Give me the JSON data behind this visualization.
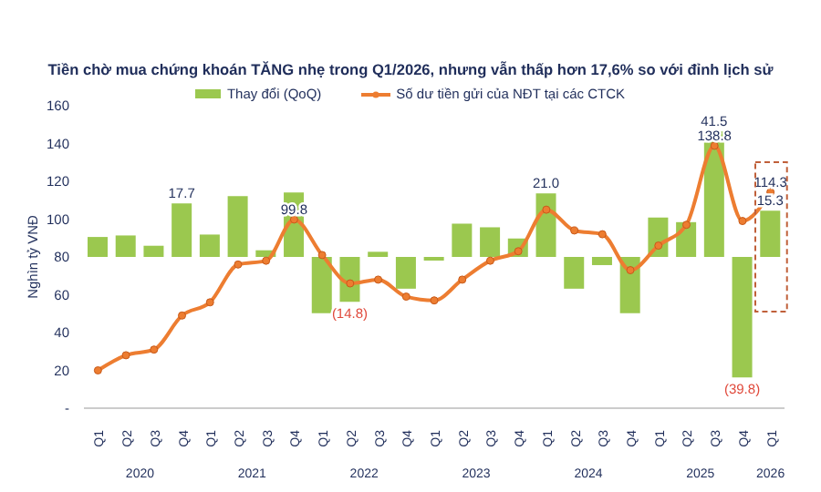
{
  "chart_data": {
    "type": "bar",
    "title": "Tiền chờ mua chứng khoán TĂNG nhẹ trong Q1/2026, nhưng vẫn thấp hơn 17,6% so với đỉnh lịch sử",
    "ylabel": "Nghìn tỷ VNĐ",
    "categories": [
      "Q1",
      "Q2",
      "Q3",
      "Q4",
      "Q1",
      "Q2",
      "Q3",
      "Q4",
      "Q1",
      "Q2",
      "Q3",
      "Q4",
      "Q1",
      "Q2",
      "Q3",
      "Q4",
      "Q1",
      "Q2",
      "Q3",
      "Q4",
      "Q1",
      "Q2",
      "Q3",
      "Q4",
      "Q1"
    ],
    "annotations": [
      "2020",
      "2021",
      "2022",
      "2023",
      "2024",
      "2025",
      "2026"
    ],
    "series": [
      {
        "name": "Thay đổi (QoQ)",
        "axis": "y2",
        "color": "#9bc84f",
        "values": [
          6.6,
          7.1,
          3.7,
          17.7,
          7.4,
          20.1,
          2.2,
          21.3,
          -18.6,
          -14.8,
          1.7,
          -10.5,
          -1.2,
          11.0,
          9.8,
          6.1,
          21.0,
          -10.5,
          -2.7,
          -18.6,
          13.0,
          11.5,
          41.5,
          -39.8,
          15.3
        ],
        "value_labels": [
          null,
          null,
          null,
          "17.7",
          null,
          null,
          null,
          null,
          null,
          "(14.8)",
          null,
          null,
          null,
          null,
          null,
          null,
          "21.0",
          null,
          null,
          null,
          null,
          null,
          "41.5",
          "(39.8)",
          "15.3"
        ]
      },
      {
        "name": "Số dư tiền gửi của NĐT tại các CTCK",
        "type": "line",
        "color": "#ed7d31",
        "marker": "circle",
        "values": [
          20,
          28,
          31,
          49,
          56,
          76,
          78,
          99.8,
          81,
          66,
          68,
          59,
          57,
          68,
          78,
          83,
          105,
          94,
          92,
          73,
          86,
          97,
          138.8,
          99,
          114.3
        ],
        "value_labels": [
          null,
          null,
          null,
          null,
          null,
          null,
          null,
          "99.8",
          null,
          null,
          null,
          null,
          null,
          null,
          null,
          null,
          null,
          null,
          null,
          null,
          null,
          null,
          "138.8",
          null,
          "114.3"
        ]
      }
    ],
    "ylim": [
      0,
      160
    ],
    "yticks": [
      {
        "value": 0,
        "label": "-"
      },
      20,
      40,
      60,
      80,
      100,
      120,
      140,
      160
    ],
    "legend": "top",
    "grid": false
  }
}
